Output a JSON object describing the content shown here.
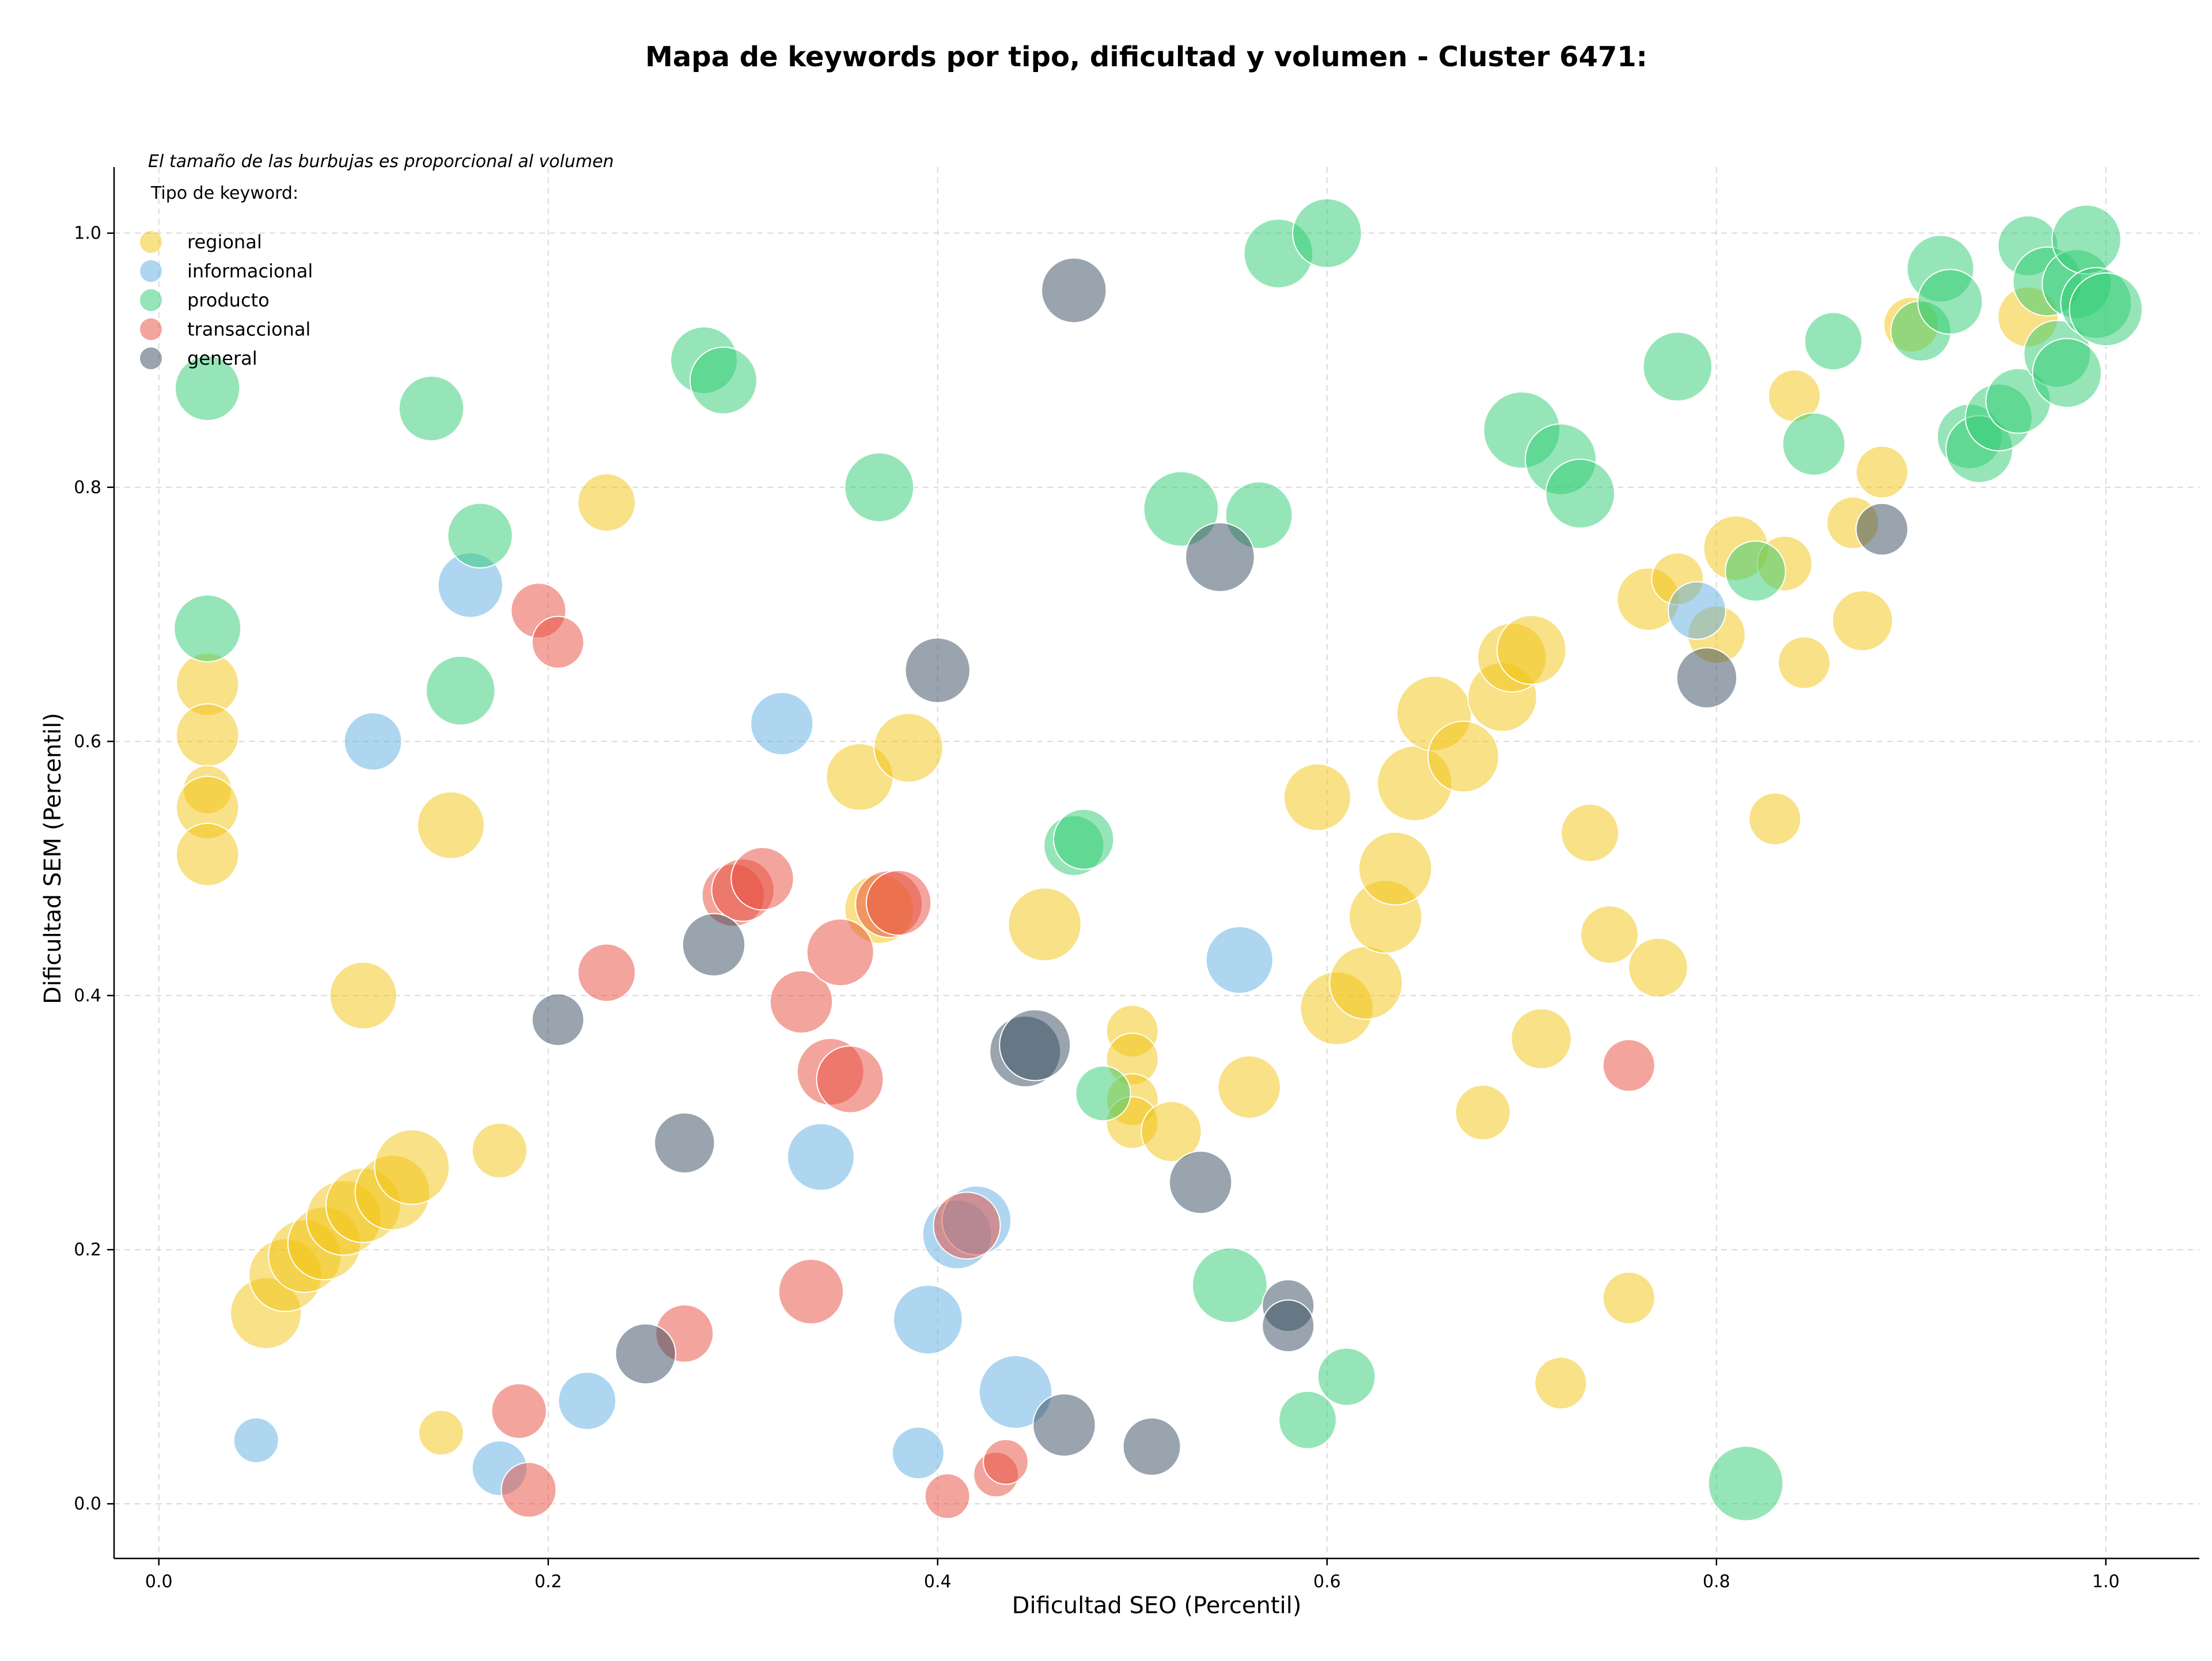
{
  "chart_data": {
    "type": "scatter",
    "title": "Mapa de keywords por tipo, dificultad y volumen - Cluster 6471:",
    "xlabel": "Dificultad SEO (Percentil)",
    "ylabel": "Dificultad SEM (Percentil)",
    "xlim": [
      -0.023,
      1.048
    ],
    "ylim": [
      -0.043,
      1.052
    ],
    "x_ticks": [
      "0.0",
      "0.2",
      "0.4",
      "0.6",
      "0.8",
      "1.0"
    ],
    "y_ticks": [
      "0.0",
      "0.2",
      "0.4",
      "0.6",
      "0.8",
      "1.0"
    ],
    "grid": true,
    "bubble_note": "El tamaño de las burbujas es proporcional al volumen",
    "legend_title": "Tipo de keyword:",
    "legend_position": "top-left",
    "size_encoding": "relative volume (0-1 scale)",
    "series": [
      {
        "name": "regional",
        "color": "#f1c40f",
        "points": [
          [
            0.025,
            0.645,
            0.45
          ],
          [
            0.025,
            0.605,
            0.45
          ],
          [
            0.025,
            0.562,
            0.2
          ],
          [
            0.025,
            0.548,
            0.45
          ],
          [
            0.025,
            0.511,
            0.45
          ],
          [
            0.105,
            0.4,
            0.55
          ],
          [
            0.15,
            0.534,
            0.55
          ],
          [
            0.23,
            0.788,
            0.35
          ],
          [
            0.175,
            0.278,
            0.3
          ],
          [
            0.145,
            0.056,
            0.15
          ],
          [
            0.055,
            0.15,
            0.65
          ],
          [
            0.065,
            0.18,
            0.7
          ],
          [
            0.075,
            0.195,
            0.7
          ],
          [
            0.085,
            0.205,
            0.7
          ],
          [
            0.095,
            0.225,
            0.75
          ],
          [
            0.105,
            0.235,
            0.75
          ],
          [
            0.12,
            0.245,
            0.75
          ],
          [
            0.13,
            0.265,
            0.75
          ],
          [
            0.36,
            0.572,
            0.55
          ],
          [
            0.385,
            0.595,
            0.6
          ],
          [
            0.37,
            0.468,
            0.6
          ],
          [
            0.455,
            0.456,
            0.7
          ],
          [
            0.5,
            0.372,
            0.25
          ],
          [
            0.5,
            0.35,
            0.25
          ],
          [
            0.5,
            0.318,
            0.25
          ],
          [
            0.5,
            0.3,
            0.25
          ],
          [
            0.52,
            0.293,
            0.4
          ],
          [
            0.56,
            0.328,
            0.45
          ],
          [
            0.595,
            0.556,
            0.55
          ],
          [
            0.605,
            0.39,
            0.7
          ],
          [
            0.62,
            0.41,
            0.7
          ],
          [
            0.63,
            0.462,
            0.7
          ],
          [
            0.635,
            0.5,
            0.7
          ],
          [
            0.645,
            0.567,
            0.75
          ],
          [
            0.655,
            0.622,
            0.75
          ],
          [
            0.67,
            0.588,
            0.65
          ],
          [
            0.69,
            0.635,
            0.6
          ],
          [
            0.695,
            0.666,
            0.6
          ],
          [
            0.705,
            0.672,
            0.6
          ],
          [
            0.735,
            0.528,
            0.35
          ],
          [
            0.745,
            0.448,
            0.35
          ],
          [
            0.68,
            0.308,
            0.3
          ],
          [
            0.71,
            0.366,
            0.4
          ],
          [
            0.72,
            0.095,
            0.25
          ],
          [
            0.755,
            0.162,
            0.25
          ],
          [
            0.77,
            0.422,
            0.38
          ],
          [
            0.765,
            0.712,
            0.45
          ],
          [
            0.78,
            0.728,
            0.25
          ],
          [
            0.8,
            0.684,
            0.35
          ],
          [
            0.81,
            0.752,
            0.5
          ],
          [
            0.835,
            0.74,
            0.3
          ],
          [
            0.84,
            0.872,
            0.25
          ],
          [
            0.845,
            0.662,
            0.25
          ],
          [
            0.83,
            0.539,
            0.25
          ],
          [
            0.87,
            0.772,
            0.25
          ],
          [
            0.875,
            0.695,
            0.4
          ],
          [
            0.885,
            0.812,
            0.25
          ],
          [
            0.9,
            0.928,
            0.3
          ],
          [
            0.96,
            0.934,
            0.4
          ]
        ]
      },
      {
        "name": "informacional",
        "color": "#5dade2",
        "points": [
          [
            0.05,
            0.05,
            0.15
          ],
          [
            0.11,
            0.6,
            0.35
          ],
          [
            0.16,
            0.723,
            0.5
          ],
          [
            0.175,
            0.028,
            0.3
          ],
          [
            0.22,
            0.081,
            0.35
          ],
          [
            0.32,
            0.614,
            0.45
          ],
          [
            0.34,
            0.273,
            0.55
          ],
          [
            0.39,
            0.04,
            0.25
          ],
          [
            0.395,
            0.145,
            0.6
          ],
          [
            0.41,
            0.212,
            0.6
          ],
          [
            0.42,
            0.223,
            0.6
          ],
          [
            0.44,
            0.088,
            0.7
          ],
          [
            0.555,
            0.428,
            0.55
          ],
          [
            0.79,
            0.703,
            0.35
          ]
        ]
      },
      {
        "name": "producto",
        "color": "#2ecc71",
        "points": [
          [
            0.025,
            0.878,
            0.5
          ],
          [
            0.025,
            0.689,
            0.55
          ],
          [
            0.14,
            0.862,
            0.5
          ],
          [
            0.165,
            0.762,
            0.5
          ],
          [
            0.155,
            0.64,
            0.6
          ],
          [
            0.28,
            0.9,
            0.55
          ],
          [
            0.29,
            0.884,
            0.55
          ],
          [
            0.37,
            0.8,
            0.6
          ],
          [
            0.47,
            0.518,
            0.4
          ],
          [
            0.475,
            0.523,
            0.4
          ],
          [
            0.485,
            0.323,
            0.3
          ],
          [
            0.525,
            0.783,
            0.75
          ],
          [
            0.565,
            0.778,
            0.55
          ],
          [
            0.575,
            0.984,
            0.6
          ],
          [
            0.6,
            1.0,
            0.6
          ],
          [
            0.55,
            0.172,
            0.75
          ],
          [
            0.59,
            0.066,
            0.35
          ],
          [
            0.61,
            0.1,
            0.35
          ],
          [
            0.7,
            0.845,
            0.8
          ],
          [
            0.72,
            0.822,
            0.65
          ],
          [
            0.73,
            0.795,
            0.6
          ],
          [
            0.78,
            0.895,
            0.6
          ],
          [
            0.815,
            0.016,
            0.75
          ],
          [
            0.82,
            0.734,
            0.4
          ],
          [
            0.85,
            0.834,
            0.45
          ],
          [
            0.86,
            0.915,
            0.35
          ],
          [
            0.905,
            0.923,
            0.4
          ],
          [
            0.915,
            0.972,
            0.55
          ],
          [
            0.92,
            0.946,
            0.5
          ],
          [
            0.93,
            0.84,
            0.5
          ],
          [
            0.935,
            0.83,
            0.55
          ],
          [
            0.945,
            0.855,
            0.55
          ],
          [
            0.955,
            0.868,
            0.5
          ],
          [
            0.96,
            0.99,
            0.4
          ],
          [
            0.97,
            0.962,
            0.6
          ],
          [
            0.975,
            0.905,
            0.55
          ],
          [
            0.98,
            0.89,
            0.6
          ],
          [
            0.985,
            0.96,
            0.6
          ],
          [
            0.99,
            0.995,
            0.6
          ],
          [
            0.995,
            0.945,
            0.65
          ],
          [
            1.0,
            0.94,
            0.7
          ]
        ]
      },
      {
        "name": "transaccional",
        "color": "#e74c3c",
        "points": [
          [
            0.185,
            0.073,
            0.3
          ],
          [
            0.19,
            0.011,
            0.3
          ],
          [
            0.195,
            0.703,
            0.3
          ],
          [
            0.205,
            0.678,
            0.25
          ],
          [
            0.23,
            0.418,
            0.35
          ],
          [
            0.27,
            0.134,
            0.35
          ],
          [
            0.295,
            0.479,
            0.45
          ],
          [
            0.3,
            0.483,
            0.45
          ],
          [
            0.31,
            0.492,
            0.45
          ],
          [
            0.33,
            0.395,
            0.45
          ],
          [
            0.335,
            0.167,
            0.5
          ],
          [
            0.345,
            0.34,
            0.55
          ],
          [
            0.355,
            0.334,
            0.55
          ],
          [
            0.35,
            0.434,
            0.55
          ],
          [
            0.375,
            0.472,
            0.55
          ],
          [
            0.38,
            0.473,
            0.5
          ],
          [
            0.405,
            0.006,
            0.15
          ],
          [
            0.415,
            0.219,
            0.55
          ],
          [
            0.43,
            0.023,
            0.15
          ],
          [
            0.435,
            0.033,
            0.15
          ],
          [
            0.755,
            0.345,
            0.25
          ]
        ]
      },
      {
        "name": "general",
        "color": "#34495e",
        "points": [
          [
            0.205,
            0.381,
            0.25
          ],
          [
            0.25,
            0.118,
            0.4
          ],
          [
            0.27,
            0.284,
            0.4
          ],
          [
            0.285,
            0.44,
            0.45
          ],
          [
            0.4,
            0.656,
            0.5
          ],
          [
            0.445,
            0.356,
            0.65
          ],
          [
            0.45,
            0.361,
            0.65
          ],
          [
            0.465,
            0.062,
            0.45
          ],
          [
            0.47,
            0.955,
            0.5
          ],
          [
            0.51,
            0.045,
            0.35
          ],
          [
            0.535,
            0.253,
            0.45
          ],
          [
            0.545,
            0.745,
            0.6
          ],
          [
            0.58,
            0.156,
            0.25
          ],
          [
            0.58,
            0.14,
            0.25
          ],
          [
            0.795,
            0.65,
            0.4
          ],
          [
            0.885,
            0.767,
            0.25
          ]
        ]
      }
    ]
  }
}
